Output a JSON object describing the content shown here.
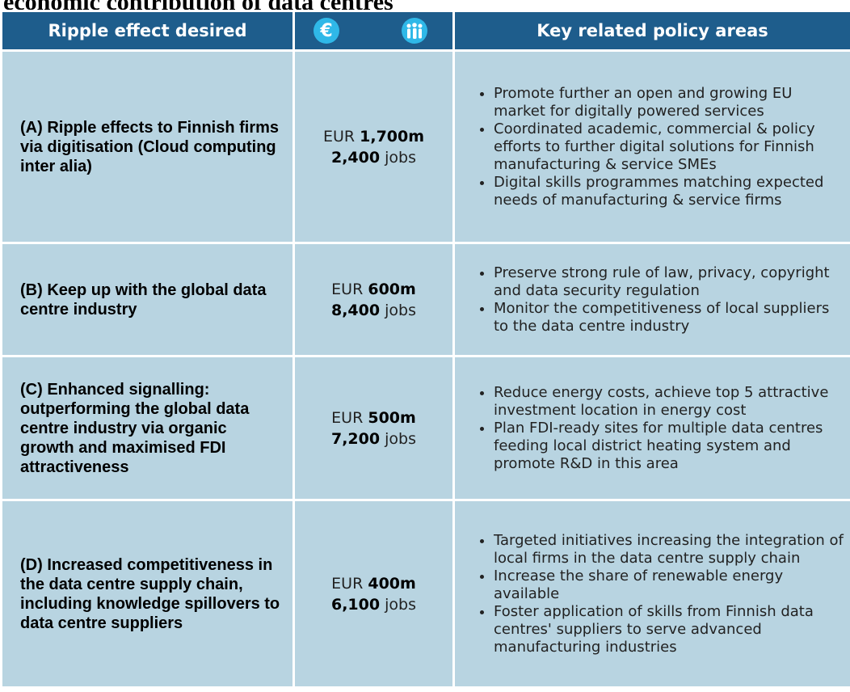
{
  "title": "economic contribution of data centres",
  "table": {
    "header": {
      "effect": "Ripple effect desired",
      "policy": "Key related policy areas"
    },
    "rows": [
      {
        "effect": "(A) Ripple effects to Finnish firms via digitisation (Cloud computing inter alia)",
        "currency": "EUR",
        "amount": "1,700m",
        "jobs": "2,400",
        "jobs_unit": "jobs",
        "policies": [
          "Promote further an open and growing EU market for digitally powered services",
          "Coordinated academic, commercial & policy efforts to further digital solutions for Finnish manufacturing & service SMEs",
          "Digital skills programmes matching expected needs of manufacturing & service firms"
        ]
      },
      {
        "effect": "(B) Keep up with the global data centre industry",
        "currency": "EUR",
        "amount": "600m",
        "jobs": "8,400",
        "jobs_unit": "jobs",
        "policies": [
          "Preserve strong rule of law, privacy, copyright and data security regulation",
          "Monitor the competitiveness of local suppliers to the data centre industry"
        ]
      },
      {
        "effect": "(C) Enhanced signalling: outperforming the global data centre industry via organic growth and maximised FDI attractiveness",
        "currency": "EUR",
        "amount": "500m",
        "jobs": "7,200",
        "jobs_unit": "jobs",
        "policies": [
          "Reduce energy costs, achieve top 5 attractive investment location in energy cost",
          "Plan FDI-ready sites for multiple data centres feeding local district heating system and promote R&D in this area"
        ]
      },
      {
        "effect": "(D) Increased competitiveness in the data centre supply chain, including knowledge spillovers to data centre suppliers",
        "currency": "EUR",
        "amount": "400m",
        "jobs": "6,100",
        "jobs_unit": "jobs",
        "policies": [
          "Targeted initiatives increasing the integration of local firms in the data centre supply chain",
          "Increase the share of renewable energy available",
          "Foster application of skills from Finnish data centres' suppliers to serve advanced manufacturing industries"
        ]
      }
    ]
  }
}
